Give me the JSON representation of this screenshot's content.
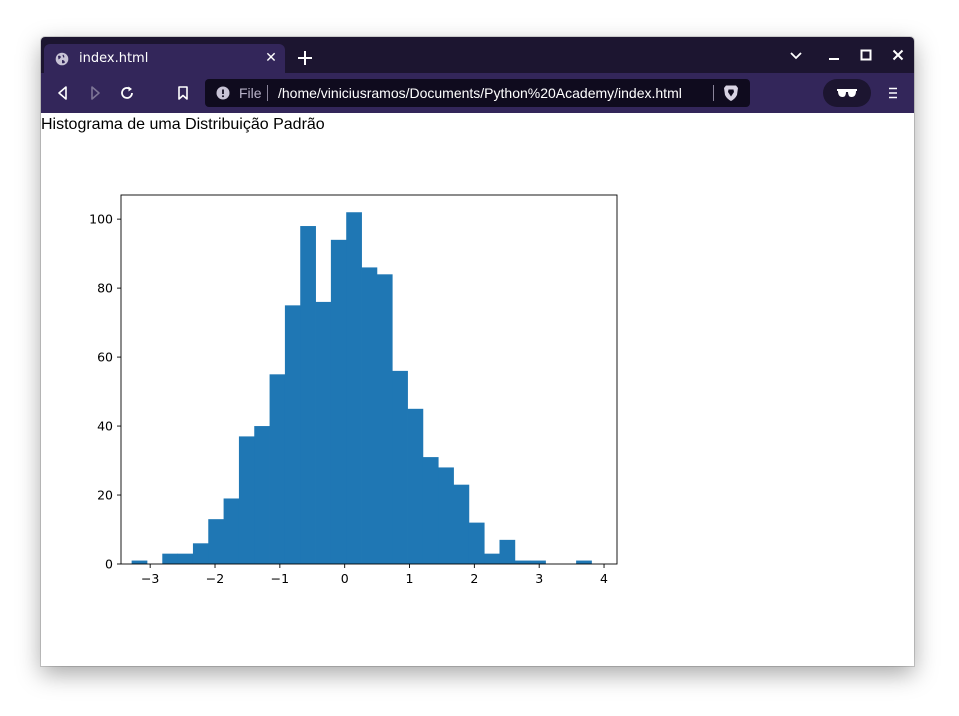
{
  "browser": {
    "tab_title": "index.html",
    "url_scheme": "File",
    "url": "/home/viniciusramos/Documents/Python%20Academy/index.html"
  },
  "page": {
    "heading": "Histograma de uma Distribuição Padrão"
  },
  "chart_data": {
    "type": "bar",
    "title": "",
    "xlabel": "",
    "ylabel": "",
    "bar_color": "#1f77b4",
    "x_range": [
      -3.45,
      4.2
    ],
    "ylim": [
      0,
      107
    ],
    "bin_width": 0.2364,
    "bin_edges_start": -3.286,
    "values": [
      1,
      0,
      3,
      3,
      6,
      13,
      19,
      37,
      40,
      55,
      75,
      98,
      76,
      94,
      102,
      86,
      84,
      56,
      45,
      31,
      28,
      23,
      12,
      3,
      7,
      1,
      1,
      0,
      0,
      1
    ],
    "x_ticks": [
      -3,
      -2,
      -1,
      0,
      1,
      2,
      3,
      4
    ],
    "x_tick_labels": [
      "−3",
      "−2",
      "−1",
      "0",
      "1",
      "2",
      "3",
      "4"
    ],
    "y_ticks": [
      0,
      20,
      40,
      60,
      80,
      100
    ],
    "y_tick_labels": [
      "0",
      "20",
      "40",
      "60",
      "80",
      "100"
    ],
    "grid": false
  }
}
